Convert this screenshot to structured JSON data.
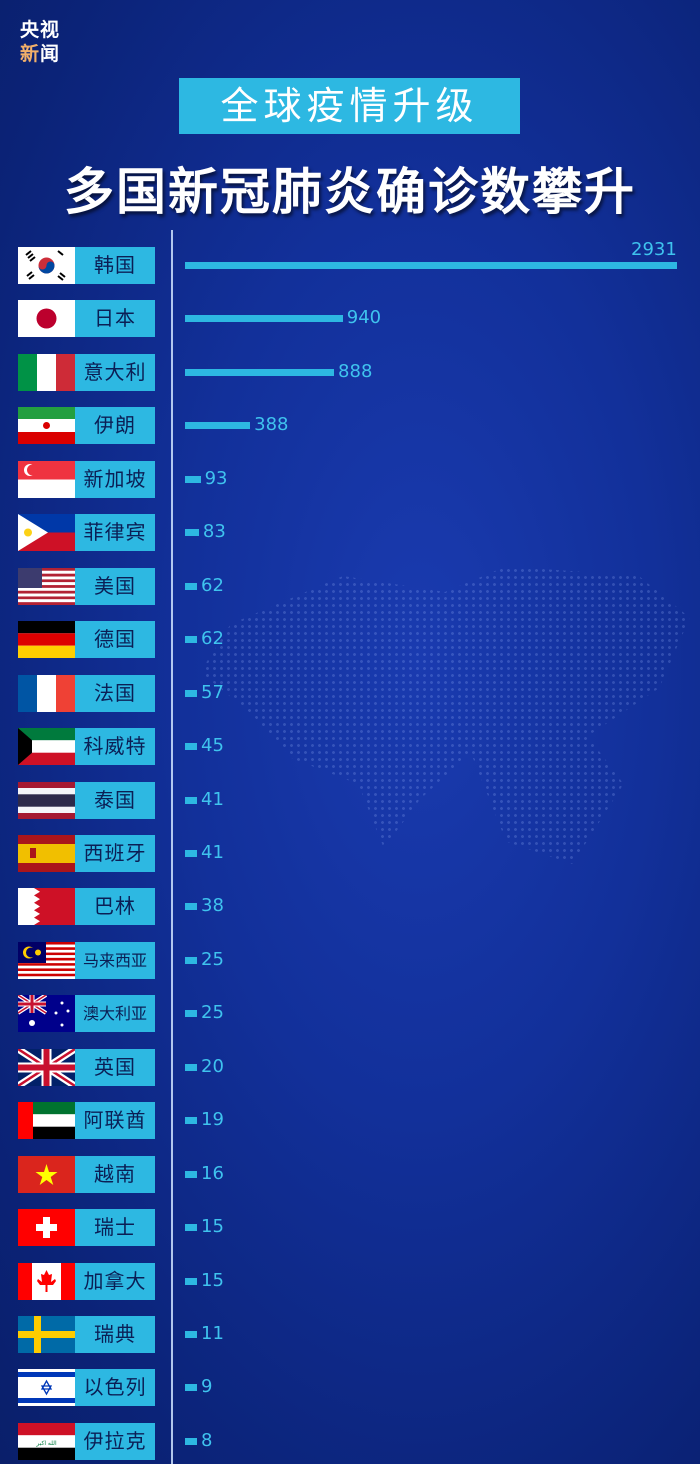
{
  "logo": {
    "line1": "央视",
    "line2a": "新",
    "line2b": "闻"
  },
  "subtitle": "全球疫情升级",
  "title": "多国新冠肺炎确诊数攀升",
  "colors": {
    "accent": "#2db8e2",
    "background": "#12309a",
    "label_text": "#0b1f55"
  },
  "chart_data": {
    "type": "bar",
    "orientation": "horizontal",
    "title": "多国新冠肺炎确诊数攀升",
    "categories": [
      "韩国",
      "日本",
      "意大利",
      "伊朗",
      "新加坡",
      "菲律宾",
      "美国",
      "德国",
      "法国",
      "科威特",
      "泰国",
      "西班牙",
      "巴林",
      "马来西亚",
      "澳大利亚",
      "英国",
      "阿联酋",
      "越南",
      "瑞士",
      "加拿大",
      "瑞典",
      "以色列",
      "伊拉克"
    ],
    "flags": [
      "kr",
      "jp",
      "it",
      "ir",
      "sg",
      "ph",
      "us",
      "de",
      "fr",
      "kw",
      "th",
      "es",
      "bh",
      "my",
      "au",
      "gb",
      "ae",
      "vn",
      "ch",
      "ca",
      "se",
      "il",
      "iq"
    ],
    "values": [
      2931,
      940,
      888,
      388,
      93,
      83,
      62,
      62,
      57,
      45,
      41,
      41,
      38,
      25,
      25,
      20,
      19,
      16,
      15,
      15,
      11,
      9,
      8
    ],
    "xlim": [
      0,
      2931
    ],
    "grid": false
  }
}
